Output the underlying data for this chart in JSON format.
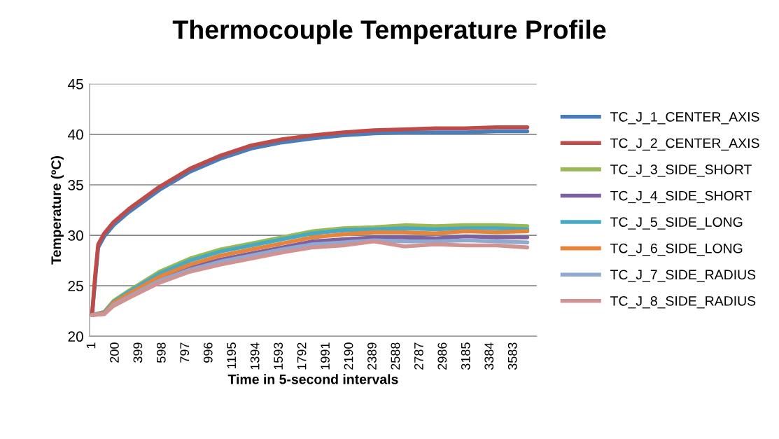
{
  "chart_data": {
    "type": "line",
    "title": "Thermocouple Temperature Profile",
    "xlabel": "Time in 5-second intervals",
    "ylabel": "Temperature (ºC)",
    "x": [
      1,
      27,
      53,
      105,
      183,
      313,
      574,
      834,
      1095,
      1355,
      1616,
      1876,
      2137,
      2397,
      2657,
      2917,
      3178,
      3438,
      3700
    ],
    "xlim": [
      -20,
      3780
    ],
    "xticks": [
      1,
      200,
      399,
      598,
      797,
      996,
      1195,
      1394,
      1593,
      1792,
      1991,
      2190,
      2389,
      2588,
      2787,
      2986,
      3185,
      3384,
      3583
    ],
    "ylim": [
      20,
      45
    ],
    "yticks": [
      20,
      25,
      30,
      35,
      40,
      45
    ],
    "grid": "y",
    "legend": "right",
    "marker": "none",
    "line_style": "solid",
    "series": [
      {
        "name": "TC_J_1_CENTER_AXIS",
        "color": "#4a7ebb",
        "values": [
          22.1,
          25.5,
          28.8,
          29.9,
          31.0,
          32.3,
          34.5,
          36.3,
          37.6,
          38.6,
          39.2,
          39.6,
          39.9,
          40.1,
          40.2,
          40.2,
          40.2,
          40.3,
          40.3
        ]
      },
      {
        "name": "TC_J_2_CENTER_AXIS",
        "color": "#be4b48",
        "values": [
          22.1,
          26.0,
          29.1,
          30.2,
          31.3,
          32.6,
          34.8,
          36.6,
          37.9,
          38.9,
          39.5,
          39.9,
          40.2,
          40.4,
          40.5,
          40.6,
          40.6,
          40.7,
          40.7
        ]
      },
      {
        "name": "TC_J_3_SIDE_SHORT",
        "color": "#98b954",
        "x": [
          1,
          105,
          183,
          313,
          574,
          834,
          1095,
          1355,
          1616,
          1876,
          2137,
          2397,
          2657,
          2917,
          3178,
          3438,
          3700
        ],
        "values": [
          22.1,
          22.4,
          23.5,
          24.5,
          26.4,
          27.7,
          28.6,
          29.2,
          29.8,
          30.4,
          30.7,
          30.8,
          31.0,
          30.9,
          31.0,
          31.0,
          30.9
        ]
      },
      {
        "name": "TC_J_4_SIDE_SHORT",
        "color": "#7d60a0",
        "x": [
          1,
          105,
          183,
          313,
          574,
          834,
          1095,
          1355,
          1616,
          1876,
          2137,
          2397,
          2657,
          2917,
          3178,
          3438,
          3700
        ],
        "values": [
          22.1,
          22.3,
          23.2,
          24.0,
          25.6,
          26.8,
          27.6,
          28.2,
          28.8,
          29.4,
          29.6,
          29.8,
          29.8,
          29.7,
          29.9,
          29.8,
          29.8
        ]
      },
      {
        "name": "TC_J_5_SIDE_LONG",
        "color": "#46aac5",
        "x": [
          1,
          105,
          183,
          313,
          574,
          834,
          1095,
          1355,
          1616,
          1876,
          2137,
          2397,
          2657,
          2917,
          3178,
          3438,
          3700
        ],
        "values": [
          22.1,
          22.4,
          23.4,
          24.4,
          26.2,
          27.5,
          28.4,
          29.0,
          29.6,
          30.2,
          30.5,
          30.6,
          30.7,
          30.6,
          30.7,
          30.7,
          30.6
        ]
      },
      {
        "name": "TC_J_6_SIDE_LONG",
        "color": "#e8843a",
        "x": [
          1,
          105,
          183,
          313,
          574,
          834,
          1095,
          1355,
          1616,
          1876,
          2137,
          2397,
          2657,
          2917,
          3178,
          3438,
          3700
        ],
        "values": [
          22.1,
          22.3,
          23.3,
          24.2,
          25.9,
          27.1,
          28.0,
          28.6,
          29.2,
          29.8,
          30.1,
          30.3,
          30.3,
          30.2,
          30.4,
          30.3,
          30.4
        ]
      },
      {
        "name": "TC_J_7_SIDE_RADIUS",
        "color": "#92a9cf",
        "x": [
          1,
          105,
          183,
          313,
          574,
          834,
          1095,
          1355,
          1616,
          1876,
          2137,
          2397,
          2657,
          2917,
          3178,
          3438,
          3700
        ],
        "values": [
          22.1,
          22.2,
          23.1,
          23.9,
          25.5,
          26.6,
          27.4,
          28.0,
          28.6,
          29.1,
          29.3,
          29.5,
          29.4,
          29.4,
          29.5,
          29.4,
          29.3
        ]
      },
      {
        "name": "TC_J_8_SIDE_RADIUS",
        "color": "#d09392",
        "x": [
          1,
          105,
          183,
          313,
          574,
          834,
          1095,
          1355,
          1616,
          1876,
          2137,
          2397,
          2657,
          2917,
          3178,
          3438,
          3700
        ],
        "values": [
          22.1,
          22.2,
          23.0,
          23.8,
          25.3,
          26.4,
          27.1,
          27.7,
          28.3,
          28.8,
          29.0,
          29.4,
          28.9,
          29.1,
          29.0,
          29.0,
          28.8
        ]
      }
    ]
  }
}
